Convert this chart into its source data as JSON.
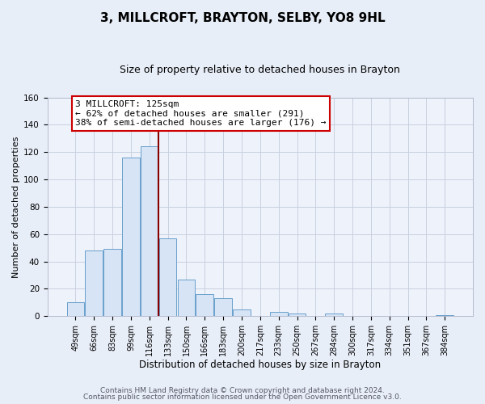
{
  "title": "3, MILLCROFT, BRAYTON, SELBY, YO8 9HL",
  "subtitle": "Size of property relative to detached houses in Brayton",
  "xlabel": "Distribution of detached houses by size in Brayton",
  "ylabel": "Number of detached properties",
  "bar_labels": [
    "49sqm",
    "66sqm",
    "83sqm",
    "99sqm",
    "116sqm",
    "133sqm",
    "150sqm",
    "166sqm",
    "183sqm",
    "200sqm",
    "217sqm",
    "233sqm",
    "250sqm",
    "267sqm",
    "284sqm",
    "300sqm",
    "317sqm",
    "334sqm",
    "351sqm",
    "367sqm",
    "384sqm"
  ],
  "bar_heights": [
    10,
    48,
    49,
    116,
    124,
    57,
    27,
    16,
    13,
    5,
    0,
    3,
    2,
    0,
    2,
    0,
    0,
    0,
    0,
    0,
    1
  ],
  "bar_color": "#d6e4f5",
  "bar_edge_color": "#6aa0cc",
  "vline_color": "#880000",
  "ylim": [
    0,
    160
  ],
  "yticks": [
    0,
    20,
    40,
    60,
    80,
    100,
    120,
    140,
    160
  ],
  "annotation_title": "3 MILLCROFT: 125sqm",
  "annotation_line1": "← 62% of detached houses are smaller (291)",
  "annotation_line2": "38% of semi-detached houses are larger (176) →",
  "annotation_box_color": "#ffffff",
  "annotation_box_edge": "#cc0000",
  "footer_line1": "Contains HM Land Registry data © Crown copyright and database right 2024.",
  "footer_line2": "Contains public sector information licensed under the Open Government Licence v3.0.",
  "background_color": "#e8eef8",
  "plot_bg_color": "#eef2fa",
  "grid_color": "#c8d0e0",
  "title_fontsize": 11,
  "subtitle_fontsize": 9,
  "footer_fontsize": 6.5,
  "xlabel_fontsize": 8.5,
  "ylabel_fontsize": 8,
  "annotation_fontsize": 8,
  "tick_fontsize": 7
}
